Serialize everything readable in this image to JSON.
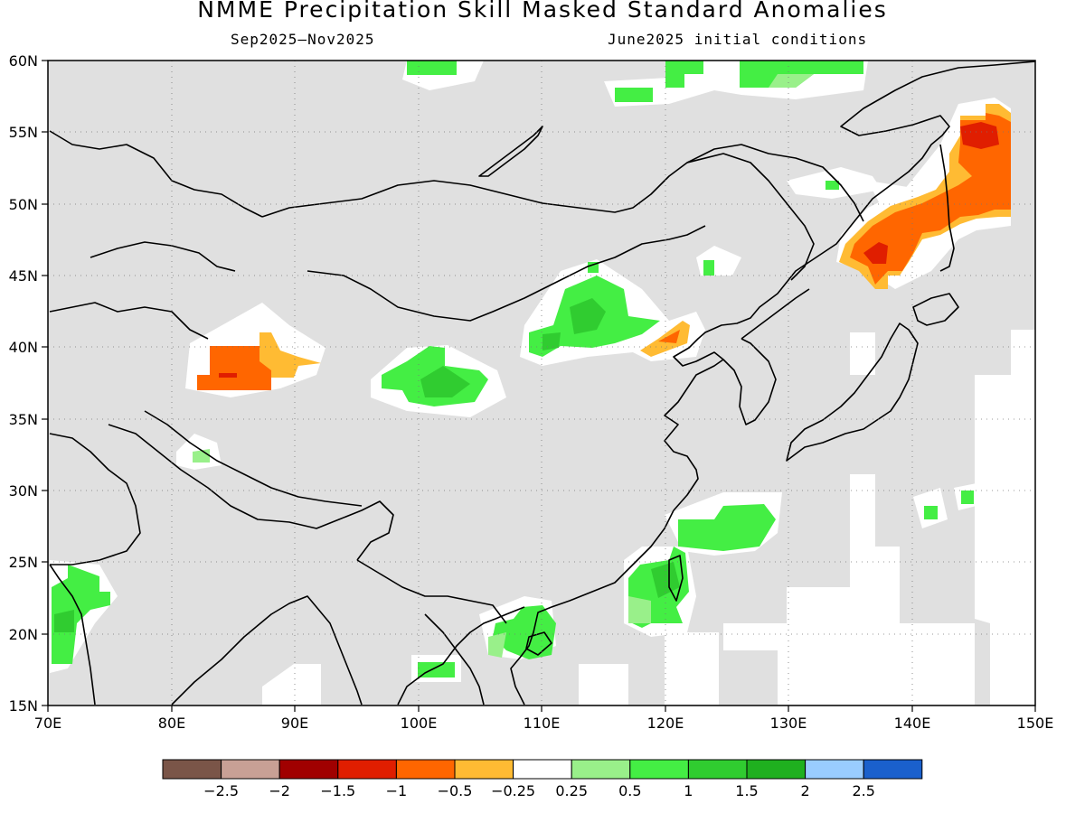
{
  "header": {
    "title": "NMME Precipitation Skill Masked Standard Anomalies",
    "period": "Sep2025–Nov2025",
    "init": "June2025 initial conditions"
  },
  "map": {
    "lon_labels": [
      "70E",
      "80E",
      "90E",
      "100E",
      "110E",
      "120E",
      "130E",
      "140E",
      "150E"
    ],
    "lat_labels": [
      "60N",
      "55N",
      "50N",
      "45N",
      "40N",
      "35N",
      "30N",
      "25N",
      "20N",
      "15N"
    ],
    "mask_color": "#e0e0e0",
    "anomaly_regions": [
      {
        "name": "tarim-basin",
        "category": "-1",
        "color": "#ff6600"
      },
      {
        "name": "gansu-inner-mongolia",
        "category": "1",
        "color": "#44ee44"
      },
      {
        "name": "qaidam",
        "category": "1",
        "color": "#44ee44"
      },
      {
        "name": "south-china-sea-taiwan",
        "category": "1",
        "color": "#44ee44"
      },
      {
        "name": "amur-russian-far-east",
        "category": "-1",
        "color": "#ff6600"
      },
      {
        "name": "siberia-north",
        "category": "1",
        "color": "#44ee44"
      },
      {
        "name": "western-india",
        "category": "1",
        "color": "#44ee44"
      }
    ]
  },
  "legend": {
    "colors": [
      "#7a5548",
      "#c8a095",
      "#a00000",
      "#e01e00",
      "#ff6600",
      "#ffbb33",
      "#ffffff",
      "#99f08a",
      "#44ee44",
      "#30cc30",
      "#1fb01f",
      "#99ccff",
      "#1a60cc"
    ],
    "tick_labels": [
      "−2.5",
      "−2",
      "−1.5",
      "−1",
      "−0.5",
      "−0.25",
      "0.25",
      "0.5",
      "1",
      "1.5",
      "2",
      "2.5"
    ]
  }
}
